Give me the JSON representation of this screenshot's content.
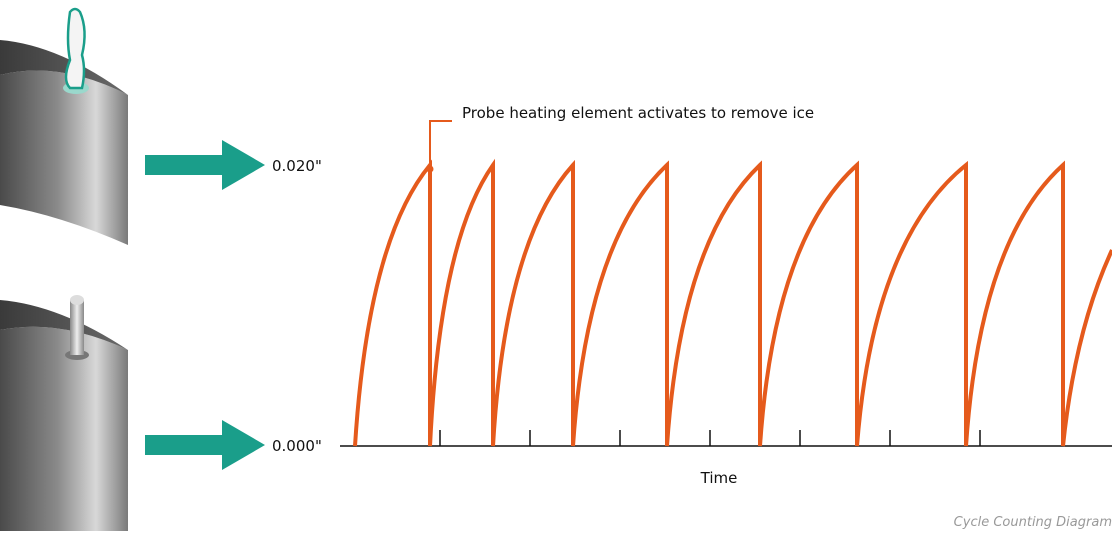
{
  "annotation": "Probe heating element activates to remove ice",
  "y_labels": [
    "0.020\"",
    "0.000\""
  ],
  "x_label": "Time",
  "caption": "Cycle Counting Diagram"
}
